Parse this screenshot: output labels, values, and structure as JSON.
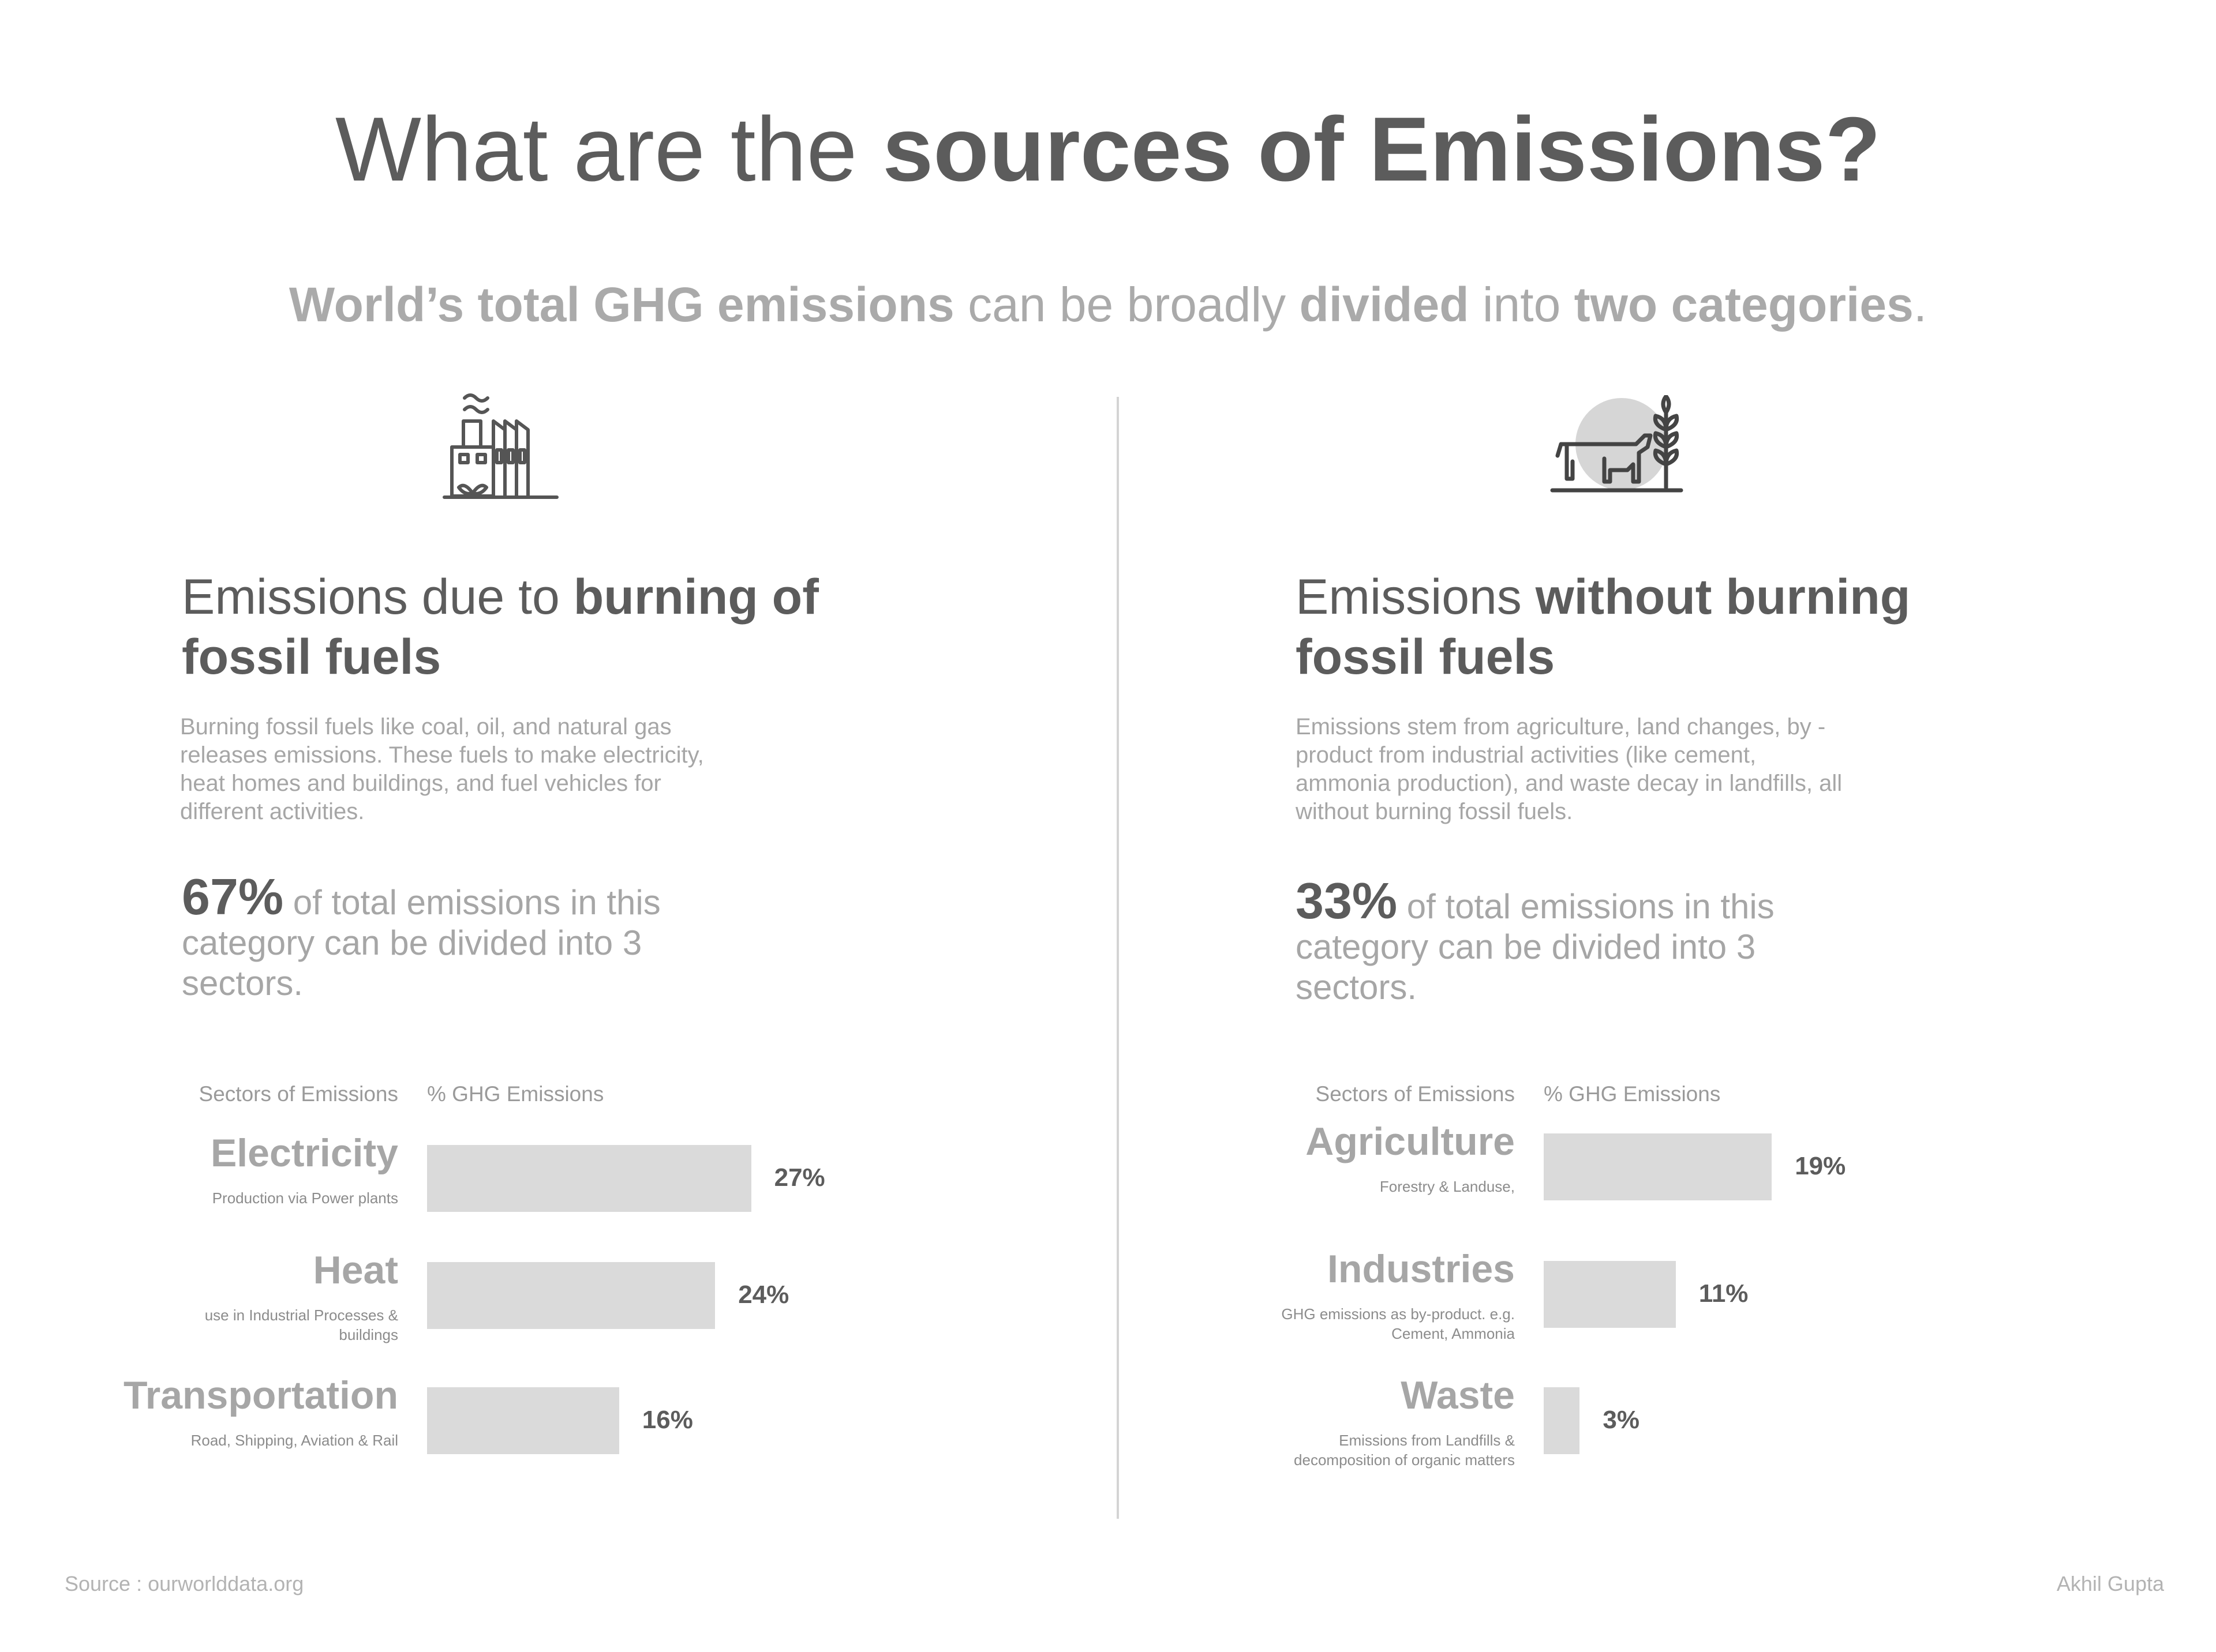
{
  "header": {
    "title_regular": "What are the ",
    "title_bold": "sources of Emissions?",
    "subtitle": {
      "p1_bold": "World’s total GHG emissions",
      "p2": " can be broadly ",
      "p3_bold": "divided",
      "p4": " into ",
      "p5_bold": "two categories",
      "p6": "."
    }
  },
  "left": {
    "icon": "factory-icon",
    "heading_regular": "Emissions due to ",
    "heading_bold": "burning of fossil fuels",
    "description": "Burning fossil fuels like coal, oil, and natural gas releases emissions. These fuels to make electricity, heat homes and buildings, and fuel vehicles for different activities.",
    "stat_pct": "67%",
    "stat_text": " of total emissions in this category can be divided into 3 sectors.",
    "axis_sectors": "Sectors of Emissions",
    "axis_ghg": "% GHG Emissions"
  },
  "right": {
    "icon": "cow-wheat-icon",
    "heading_regular": "Emissions ",
    "heading_bold": "without burning fossil fuels",
    "description": "Emissions stem from agriculture, land changes, by -product from industrial activities (like cement, ammonia production), and waste decay in landfills, all without burning fossil fuels.",
    "stat_pct": "33%",
    "stat_text": " of total emissions in this category can be divided into 3 sectors.",
    "axis_sectors": "Sectors of Emissions",
    "axis_ghg": "% GHG Emissions"
  },
  "chart_data": [
    {
      "type": "bar",
      "orientation": "horizontal",
      "xlabel": "% GHG Emissions",
      "ylabel": "Sectors of Emissions",
      "categories": [
        "Electricity",
        "Heat",
        "Transportation"
      ],
      "subtitles": [
        "Production via Power plants",
        "use in Industrial Processes & buildings",
        "Road, Shipping, Aviation & Rail"
      ],
      "values": [
        27,
        24,
        16
      ],
      "value_labels": [
        "27%",
        "24%",
        "16%"
      ],
      "bar_color": "#dadada"
    },
    {
      "type": "bar",
      "orientation": "horizontal",
      "xlabel": "% GHG Emissions",
      "ylabel": "Sectors of Emissions",
      "categories": [
        "Agriculture",
        "Industries",
        "Waste"
      ],
      "subtitles": [
        "Forestry & Landuse,",
        "GHG emissions as by-product. e.g. Cement, Ammonia",
        "Emissions from Landfills & decomposition of organic matters"
      ],
      "values": [
        19,
        11,
        3
      ],
      "value_labels": [
        "19%",
        "11%",
        "3%"
      ],
      "bar_color": "#dadada"
    }
  ],
  "footer": {
    "source": "Source : ourworlddata.org",
    "author": "Akhil Gupta"
  }
}
